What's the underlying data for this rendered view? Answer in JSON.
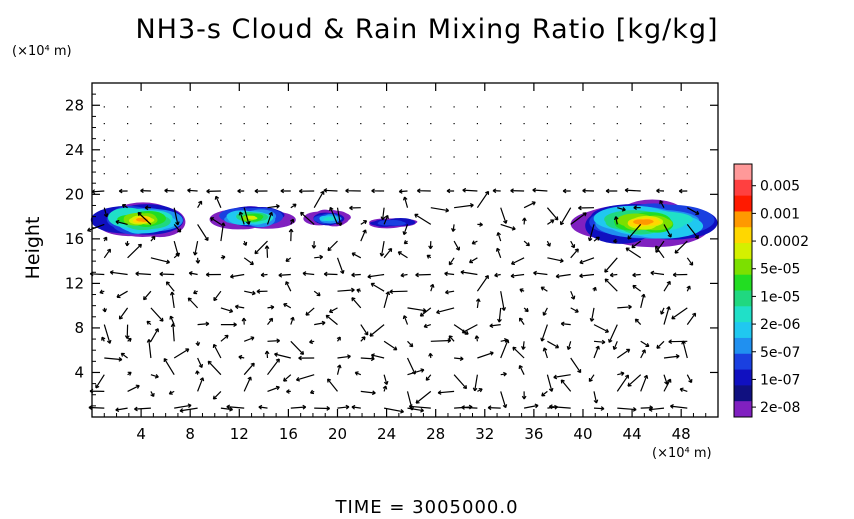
{
  "chart_data": {
    "type": "heatmap",
    "title": "NH3-s Cloud & Rain Mixing Ratio [kg/kg]",
    "ylabel": "Height",
    "y_unit": "(×10⁴ m)",
    "x_unit": "(×10⁴ m)",
    "x_ticks": [
      "4",
      "8",
      "12",
      "16",
      "20",
      "24",
      "28",
      "32",
      "36",
      "40",
      "44",
      "48"
    ],
    "y_ticks": [
      "4",
      "8",
      "12",
      "16",
      "20",
      "24",
      "28"
    ],
    "xlim": [
      0,
      51
    ],
    "ylim": [
      0,
      30
    ],
    "colorbar": {
      "labels": [
        "0.005",
        "0.001",
        "0.0002",
        "5e-05",
        "1e-05",
        "2e-06",
        "5e-07",
        "1e-07",
        "2e-08"
      ],
      "colors": [
        "#ff9999",
        "#ff4040",
        "#ff1a00",
        "#ff9900",
        "#ffd700",
        "#d4f000",
        "#7ce000",
        "#22dd22",
        "#20d880",
        "#20e0c8",
        "#20c8f0",
        "#2090f0",
        "#1a40e0",
        "#1010c0",
        "#101080",
        "#8020c0"
      ]
    },
    "cloud_regions": [
      {
        "x": [
          0,
          8
        ],
        "y": [
          16,
          19.4
        ],
        "peak": "0.0002"
      },
      {
        "x": [
          10,
          16
        ],
        "y": [
          16.8,
          19
        ],
        "peak": "5e-05"
      },
      {
        "x": [
          17.5,
          21
        ],
        "y": [
          17,
          18.6
        ],
        "peak": "2e-06"
      },
      {
        "x": [
          22,
          27
        ],
        "y": [
          16.9,
          18
        ],
        "peak": "1e-07"
      },
      {
        "x": [
          39,
          51
        ],
        "y": [
          15.4,
          19.6
        ],
        "peak": "0.0002"
      }
    ],
    "grid": false
  },
  "footer": {
    "time_label": "TIME  =  3005000.0"
  }
}
